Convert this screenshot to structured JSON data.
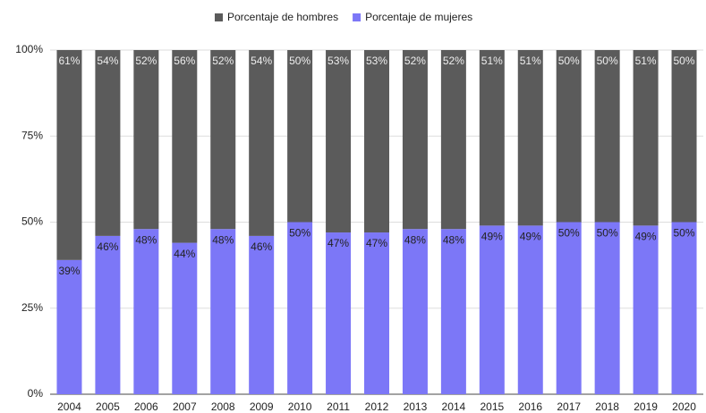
{
  "chart_data": {
    "type": "stacked_bar",
    "categories": [
      "2004",
      "2005",
      "2006",
      "2007",
      "2008",
      "2009",
      "2010",
      "2011",
      "2012",
      "2013",
      "2014",
      "2015",
      "2016",
      "2017",
      "2018",
      "2019",
      "2020"
    ],
    "series": [
      {
        "name": "Porcentaje de hombres",
        "color": "#5b5b5b",
        "values": [
          61,
          54,
          52,
          56,
          52,
          54,
          50,
          53,
          53,
          52,
          52,
          51,
          51,
          50,
          50,
          51,
          50
        ],
        "value_labels": [
          "61%",
          "54%",
          "52%",
          "56%",
          "52%",
          "54%",
          "50%",
          "53%",
          "53%",
          "52%",
          "52%",
          "51%",
          "51%",
          "50%",
          "50%",
          "51%",
          "50%"
        ]
      },
      {
        "name": "Porcentaje de mujeres",
        "color": "#7c77f7",
        "values": [
          39,
          46,
          48,
          44,
          48,
          46,
          50,
          47,
          47,
          48,
          48,
          49,
          49,
          50,
          50,
          49,
          50
        ],
        "value_labels": [
          "39%",
          "46%",
          "48%",
          "44%",
          "48%",
          "46%",
          "50%",
          "47%",
          "47%",
          "48%",
          "48%",
          "49%",
          "49%",
          "50%",
          "50%",
          "49%",
          "50%"
        ]
      }
    ],
    "ylim": [
      0,
      100
    ],
    "yticks": [
      {
        "value": 0,
        "label": "0%"
      },
      {
        "value": 25,
        "label": "25%"
      },
      {
        "value": 50,
        "label": "50%"
      },
      {
        "value": 75,
        "label": "75%"
      },
      {
        "value": 100,
        "label": "100%"
      }
    ],
    "grid": true,
    "legend": "top"
  }
}
